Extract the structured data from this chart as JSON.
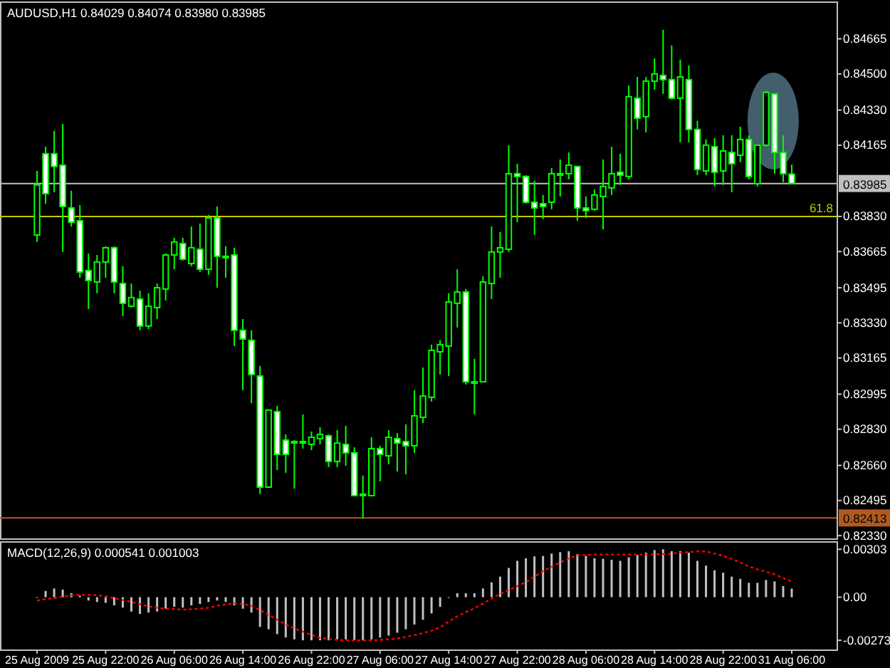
{
  "chart_data": [
    {
      "type": "candlestick",
      "title": "AUDUSD,H1  0.84029 0.84074 0.83980 0.83985",
      "categories": [
        null,
        null,
        null,
        null,
        null,
        null,
        null,
        null,
        null,
        null,
        null,
        null,
        null,
        null,
        null,
        null,
        null,
        null,
        null,
        null,
        null,
        null,
        null,
        null,
        null,
        null,
        null,
        null,
        null,
        null,
        null,
        null,
        null,
        null,
        null,
        null,
        null,
        null,
        null,
        null,
        null,
        null,
        null,
        null,
        null,
        null,
        null,
        null,
        null,
        null,
        null,
        null,
        null,
        null,
        null,
        null,
        null,
        null,
        null,
        null,
        null,
        null,
        null,
        null,
        null,
        null,
        null,
        null,
        null,
        null,
        null,
        null,
        null,
        null,
        null,
        null,
        null,
        null,
        null,
        null,
        null,
        null,
        null,
        null,
        null,
        null,
        null,
        null,
        null
      ],
      "ohlc": [
        [
          0.83743,
          0.84044,
          0.8371,
          0.83978
        ],
        [
          0.84125,
          0.84158,
          0.8389,
          0.83937
        ],
        [
          0.84125,
          0.84232,
          0.83944,
          0.84065
        ],
        [
          0.84071,
          0.84265,
          0.83663,
          0.83877
        ],
        [
          0.8387,
          0.83951,
          0.83783,
          0.83803
        ],
        [
          0.8381,
          0.83884,
          0.83542,
          0.83569
        ],
        [
          0.83576,
          0.83656,
          0.83395,
          0.83529
        ],
        [
          0.83522,
          0.83649,
          0.83469,
          0.83616
        ],
        [
          0.83616,
          0.8369,
          0.83542,
          0.83683
        ],
        [
          0.83683,
          0.8369,
          0.83469,
          0.83522
        ],
        [
          0.83515,
          0.83596,
          0.83361,
          0.83422
        ],
        [
          0.83408,
          0.83515,
          0.83402,
          0.83449
        ],
        [
          0.83442,
          0.83482,
          0.83295,
          0.83315
        ],
        [
          0.83315,
          0.83469,
          0.83301,
          0.83408
        ],
        [
          0.83402,
          0.83515,
          0.83348,
          0.83495
        ],
        [
          0.83489,
          0.83656,
          0.83435,
          0.83649
        ],
        [
          0.83649,
          0.8373,
          0.83582,
          0.8371
        ],
        [
          0.83703,
          0.8373,
          0.83623,
          0.83629
        ],
        [
          0.83609,
          0.83783,
          0.83596,
          0.83683
        ],
        [
          0.83676,
          0.83797,
          0.83569,
          0.83582
        ],
        [
          0.83582,
          0.83837,
          0.83556,
          0.83823
        ],
        [
          0.83823,
          0.83877,
          0.83495,
          0.83643
        ],
        [
          0.83643,
          0.8369,
          0.83542,
          0.83636
        ],
        [
          0.83649,
          0.83683,
          0.83221,
          0.83295
        ],
        [
          0.83295,
          0.83348,
          0.83013,
          0.83254
        ],
        [
          0.83248,
          0.83295,
          0.82953,
          0.83087
        ],
        [
          0.8308,
          0.83127,
          0.82525,
          0.82558
        ],
        [
          0.82558,
          0.8292,
          0.82558,
          0.8292
        ],
        [
          0.82913,
          0.8294,
          0.82638,
          0.82712
        ],
        [
          0.82779,
          0.82806,
          0.82625,
          0.82712
        ],
        [
          0.82772,
          0.82779,
          0.82551,
          0.82772
        ],
        [
          0.82772,
          0.829,
          0.82739,
          0.82765
        ],
        [
          0.82759,
          0.82819,
          0.82732,
          0.82792
        ],
        [
          0.82786,
          0.82839,
          0.82759,
          0.82806
        ],
        [
          0.82799,
          0.82806,
          0.82652,
          0.82679
        ],
        [
          0.82679,
          0.82826,
          0.82652,
          0.82765
        ],
        [
          0.82759,
          0.82846,
          0.82658,
          0.82719
        ],
        [
          0.82719,
          0.82745,
          0.82518,
          0.82518
        ],
        [
          0.82525,
          0.82612,
          0.8241,
          0.82525
        ],
        [
          0.82518,
          0.82792,
          0.82518,
          0.82739
        ],
        [
          0.82739,
          0.82752,
          0.82585,
          0.82712
        ],
        [
          0.82705,
          0.82826,
          0.82665,
          0.82792
        ],
        [
          0.82786,
          0.82812,
          0.82632,
          0.82765
        ],
        [
          0.82772,
          0.82853,
          0.82618,
          0.82752
        ],
        [
          0.82752,
          0.83013,
          0.82719,
          0.82893
        ],
        [
          0.82886,
          0.8312,
          0.82859,
          0.82986
        ],
        [
          0.8298,
          0.83228,
          0.8296,
          0.83201
        ],
        [
          0.83194,
          0.83248,
          0.83087,
          0.83228
        ],
        [
          0.83221,
          0.83469,
          0.8308,
          0.83428
        ],
        [
          0.83422,
          0.83582,
          0.83308,
          0.83475
        ],
        [
          0.83475,
          0.83489,
          0.8304,
          0.83053
        ],
        [
          0.83053,
          0.83161,
          0.829,
          0.83053
        ],
        [
          0.83053,
          0.83549,
          0.83053,
          0.83522
        ],
        [
          0.83515,
          0.83783,
          0.83442,
          0.83663
        ],
        [
          0.83663,
          0.83757,
          0.83542,
          0.83683
        ],
        [
          0.83676,
          0.84165,
          0.83663,
          0.84031
        ],
        [
          0.84031,
          0.84078,
          0.83803,
          0.84018
        ],
        [
          0.84018,
          0.84024,
          0.8389,
          0.83897
        ],
        [
          0.83897,
          0.83998,
          0.83743,
          0.8387
        ],
        [
          0.8389,
          0.83931,
          0.83817,
          0.83877
        ],
        [
          0.83897,
          0.84058,
          0.83864,
          0.84031
        ],
        [
          0.84031,
          0.84098,
          0.83924,
          0.84031
        ],
        [
          0.84031,
          0.84131,
          0.84004,
          0.84071
        ],
        [
          0.84065,
          0.84065,
          0.8381,
          0.8387
        ],
        [
          0.8387,
          0.83924,
          0.83823,
          0.83857
        ],
        [
          0.83864,
          0.83957,
          0.83857,
          0.83931
        ],
        [
          0.83924,
          0.84098,
          0.8377,
          0.83971
        ],
        [
          0.83964,
          0.84158,
          0.83931,
          0.84031
        ],
        [
          0.84038,
          0.84125,
          0.83978,
          0.84024
        ],
        [
          0.84018,
          0.84446,
          0.84004,
          0.84393
        ],
        [
          0.84386,
          0.84486,
          0.84239,
          0.84292
        ],
        [
          0.84299,
          0.84486,
          0.84225,
          0.84466
        ],
        [
          0.84466,
          0.84573,
          0.84426,
          0.845
        ],
        [
          0.84493,
          0.84707,
          0.84406,
          0.84473
        ],
        [
          0.84473,
          0.84634,
          0.84379,
          0.84386
        ],
        [
          0.84386,
          0.84567,
          0.84178,
          0.84486
        ],
        [
          0.84473,
          0.8454,
          0.84178,
          0.84239
        ],
        [
          0.84239,
          0.84279,
          0.84024,
          0.84051
        ],
        [
          0.84044,
          0.84192,
          0.84024,
          0.84165
        ],
        [
          0.84158,
          0.84198,
          0.83971,
          0.84038
        ],
        [
          0.84044,
          0.84212,
          0.83978,
          0.84138
        ],
        [
          0.84131,
          0.84212,
          0.83944,
          0.84078
        ],
        [
          0.84118,
          0.84252,
          0.84085,
          0.84192
        ],
        [
          0.84192,
          0.84212,
          0.84004,
          0.84018
        ],
        [
          0.83984,
          0.84165,
          0.83971,
          0.84165
        ],
        [
          0.84165,
          0.8442,
          0.84158,
          0.84413
        ],
        [
          0.84406,
          0.84406,
          0.84031,
          0.84131
        ],
        [
          0.84131,
          0.84212,
          0.83991,
          0.84031
        ],
        [
          0.84029,
          0.84074,
          0.8398,
          0.83985
        ]
      ],
      "ylim": [
        0.82317,
        0.84834
      ],
      "yticks": [
        {
          "value": 0.84665,
          "label": "0.84665"
        },
        {
          "value": 0.845,
          "label": "0.84500"
        },
        {
          "value": 0.8433,
          "label": "0.84330"
        },
        {
          "value": 0.84165,
          "label": "0.84165"
        },
        {
          "value": 0.8383,
          "label": "0.83830"
        },
        {
          "value": 0.83665,
          "label": "0.83665"
        },
        {
          "value": 0.83495,
          "label": "0.83495"
        },
        {
          "value": 0.8333,
          "label": "0.83330"
        },
        {
          "value": 0.83165,
          "label": "0.83165"
        },
        {
          "value": 0.82995,
          "label": "0.82995"
        },
        {
          "value": 0.8283,
          "label": "0.82830"
        },
        {
          "value": 0.8266,
          "label": "0.82660"
        },
        {
          "value": 0.82495,
          "label": "0.82495"
        },
        {
          "value": 0.8233,
          "label": "0.82330"
        }
      ],
      "tick_labels": "y",
      "ref_lines": [
        {
          "axis": "y",
          "value": 0.83985,
          "label": "0.83985",
          "color": "#c0c0c0"
        },
        {
          "axis": "y",
          "value": 0.8383,
          "color": "#c8c800"
        },
        {
          "axis": "y",
          "value": 0.82413,
          "label": "0.82413",
          "color": "#b05a20"
        }
      ],
      "annotations": [
        {
          "text": "61.8",
          "y": 0.8383
        }
      ]
    },
    {
      "type": "bar",
      "title": "MACD(12,26,9) 0.000541 0.001003",
      "categories": [
        "25 Aug 2009",
        null,
        null,
        null,
        null,
        null,
        null,
        null,
        "25 Aug 22:00",
        null,
        null,
        null,
        null,
        null,
        null,
        null,
        "26 Aug 06:00",
        null,
        null,
        null,
        null,
        null,
        null,
        null,
        "26 Aug 14:00",
        null,
        null,
        null,
        null,
        null,
        null,
        null,
        "26 Aug 22:00",
        null,
        null,
        null,
        null,
        null,
        null,
        null,
        "27 Aug 06:00",
        null,
        null,
        null,
        null,
        null,
        null,
        null,
        "27 Aug 14:00",
        null,
        null,
        null,
        null,
        null,
        null,
        null,
        "27 Aug 22:00",
        null,
        null,
        null,
        null,
        null,
        null,
        null,
        "28 Aug 06:00",
        null,
        null,
        null,
        null,
        null,
        null,
        null,
        "28 Aug 14:00",
        null,
        null,
        null,
        null,
        null,
        null,
        null,
        "28 Aug 22:00",
        null,
        null,
        null,
        null,
        null,
        null,
        null,
        "31 Aug 06:00"
      ],
      "series": [
        {
          "type": "bar",
          "color": "#c0c0c0",
          "values": [
            0,
            0.00039,
            0.00055,
            0.00048,
            0.00025,
            9e-05,
            -0.00021,
            -0.0003,
            -0.00036,
            -0.00052,
            -0.00066,
            -0.00091,
            -0.00106,
            -0.00097,
            -0.00091,
            -0.00073,
            -0.00061,
            -0.00066,
            -0.00052,
            -0.00043,
            -0.0003,
            -0.00021,
            -0.0003,
            -0.00052,
            -0.00073,
            -0.00097,
            -0.00188,
            -0.00203,
            -0.00234,
            -0.00255,
            -0.00267,
            -0.00273,
            -0.00273,
            -0.00273,
            -0.00273,
            -0.00267,
            -0.00267,
            -0.00273,
            -0.00273,
            -0.00267,
            -0.00255,
            -0.00243,
            -0.00225,
            -0.00203,
            -0.00173,
            -0.00143,
            -0.00103,
            -0.00061,
            0,
            0.00025,
            0.00025,
            0.00025,
            0.00055,
            0.00094,
            0.0013,
            0.00185,
            0.0023,
            0.00246,
            0.00258,
            0.00261,
            0.00276,
            0.00285,
            0.00291,
            0.00273,
            0.00261,
            0.00246,
            0.00243,
            0.00237,
            0.0023,
            0.00252,
            0.00267,
            0.00282,
            0.00298,
            0.00303,
            0.00291,
            0.00291,
            0.00282,
            0.0023,
            0.002,
            0.0017,
            0.00155,
            0.0013,
            0.00116,
            0.00091,
            0.00091,
            0.00109,
            0.001,
            0.0007,
            0.000541
          ]
        },
        {
          "type": "line",
          "color": "#ff0000",
          "line_style": "dotted",
          "values": [
            -0.00021,
            -0.00012,
            -6e-05,
            3e-05,
            0.00012,
            0.00015,
            0.00015,
            0.00012,
            6e-05,
            -6e-05,
            -0.00018,
            -0.0003,
            -0.00045,
            -0.00058,
            -0.00067,
            -0.00073,
            -0.00076,
            -0.00079,
            -0.00076,
            -0.00073,
            -0.00067,
            -0.00055,
            -0.00045,
            -0.00039,
            -0.00042,
            -0.00055,
            -0.00082,
            -0.00112,
            -0.00142,
            -0.00173,
            -0.00197,
            -0.00218,
            -0.00239,
            -0.00258,
            -0.00264,
            -0.0027,
            -0.00273,
            -0.00273,
            -0.00273,
            -0.00273,
            -0.0027,
            -0.00267,
            -0.00261,
            -0.00252,
            -0.0024,
            -0.00227,
            -0.00212,
            -0.0019,
            -0.00155,
            -0.0012,
            -0.00095,
            -0.0007,
            -0.0004,
            -0.0001,
            0.0002,
            0.00045,
            0.0007,
            0.00095,
            0.0013,
            0.00165,
            0.00192,
            0.0022,
            0.00245,
            0.00265,
            0.00268,
            0.0027,
            0.0027,
            0.0027,
            0.0027,
            0.0027,
            0.0027,
            0.0027,
            0.0027,
            0.00273,
            0.00276,
            0.0028,
            0.00285,
            0.0029,
            0.0029,
            0.00276,
            0.00261,
            0.00242,
            0.0022,
            0.00195,
            0.00176,
            0.00161,
            0.00145,
            0.0012,
            0.001003
          ]
        }
      ],
      "ylim": [
        -0.00331,
        0.00345
      ],
      "yticks": [
        0.00303,
        {
          "value": 0,
          "label": "0.00"
        },
        -0.00273
      ]
    }
  ]
}
